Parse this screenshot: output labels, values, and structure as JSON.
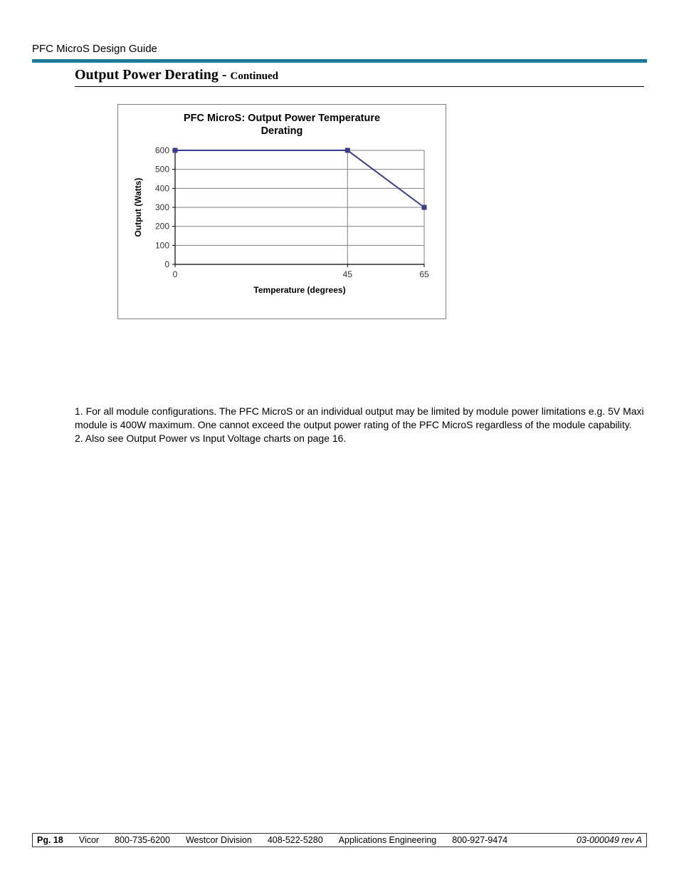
{
  "header": {
    "doc_title": "PFC MicroS Design Guide",
    "teal_bar_color": "#1b7a99"
  },
  "section": {
    "title_main": "Output Power Derating - ",
    "title_sub": "Continued"
  },
  "chart": {
    "type": "line",
    "title_line1": "PFC MicroS: Output Power Temperature",
    "title_line2": "Derating",
    "title_fontsize": 14.5,
    "title_fontweight": "bold",
    "xlabel": "Temperature (degrees)",
    "ylabel": "Output (Watts)",
    "label_fontsize": 12,
    "label_fontweight": "bold",
    "x_ticks": [
      0,
      45,
      65
    ],
    "y_ticks": [
      0,
      100,
      200,
      300,
      400,
      500,
      600
    ],
    "xlim": [
      0,
      65
    ],
    "ylim": [
      0,
      600
    ],
    "series": {
      "points": [
        {
          "x": 0,
          "y": 600
        },
        {
          "x": 45,
          "y": 600
        },
        {
          "x": 65,
          "y": 300
        }
      ],
      "line_color": "#3b3b8f",
      "line_width": 2,
      "marker_style": "square",
      "marker_size": 7,
      "marker_color": "#3b3b8f"
    },
    "gridline_color": "#808080",
    "axis_color": "#000000",
    "background_color": "#ffffff",
    "tick_text_color": "#333333",
    "tick_fontsize": 12
  },
  "notes": {
    "n1": "1. For all module configurations.  The PFC MicroS or an individual output may be limited by module power limitations e.g. 5V Maxi module is 400W maximum.  One cannot exceed the output power rating of the PFC MicroS regardless of the module capability.",
    "n2": "2. Also see Output Power vs Input Voltage charts on page 16."
  },
  "footer": {
    "page": "Pg. 18",
    "c1": "Vicor",
    "p1": "800-735-6200",
    "c2": "Westcor Division",
    "p2": "408-522-5280",
    "c3": "Applications Engineering",
    "p3": "800-927-9474",
    "rev": "03-000049 rev A"
  }
}
